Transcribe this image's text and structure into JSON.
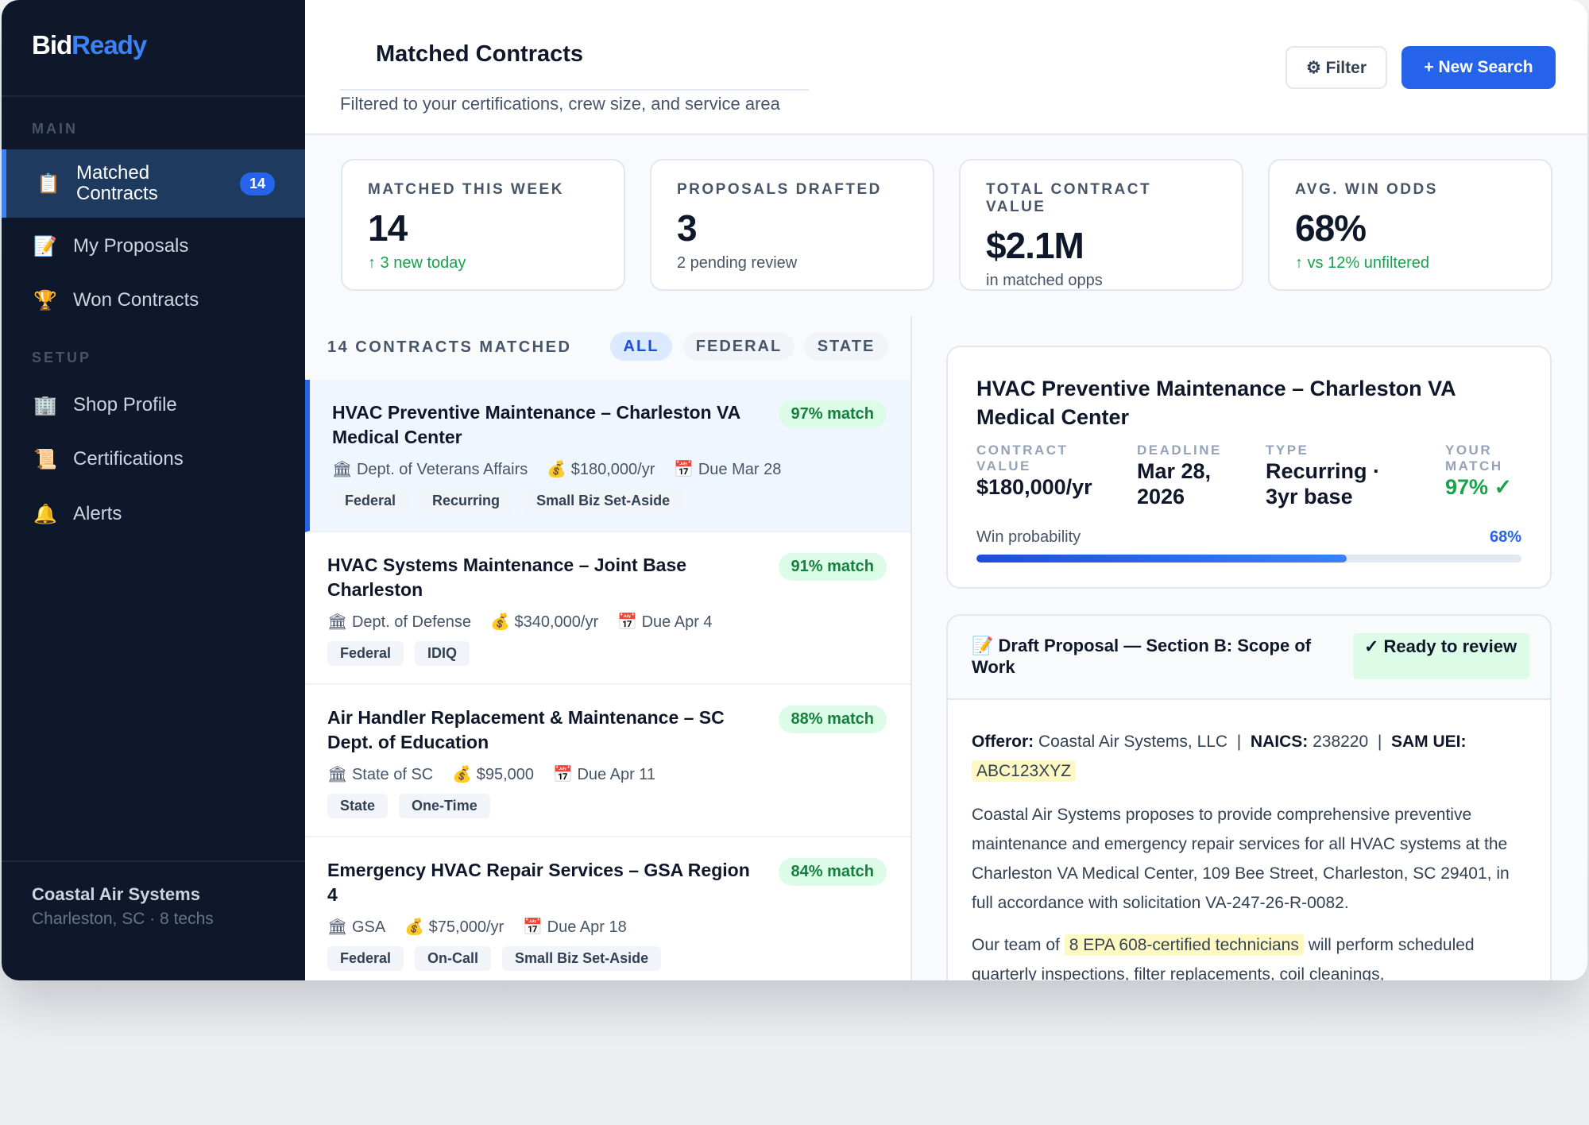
{
  "app": {
    "logo_a": "Bid",
    "logo_b": "Ready"
  },
  "sidebar": {
    "main_label": "MAIN",
    "setup_label": "SETUP",
    "items": [
      {
        "icon": "📋",
        "label": "Matched Contracts",
        "badge": "14"
      },
      {
        "icon": "📝",
        "label": "My Proposals"
      },
      {
        "icon": "🏆",
        "label": "Won Contracts"
      },
      {
        "icon": "🏢",
        "label": "Shop Profile"
      },
      {
        "icon": "📜",
        "label": "Certifications"
      },
      {
        "icon": "🔔",
        "label": "Alerts"
      }
    ],
    "footer": {
      "name": "Coastal Air Systems",
      "sub": "Charleston, SC · 8 techs"
    }
  },
  "header": {
    "title": "Matched Contracts",
    "subtitle": "Filtered to your certifications, crew size, and service area",
    "filter": "⚙ Filter",
    "new_search": "+ New Search"
  },
  "stats": [
    {
      "label": "MATCHED THIS WEEK",
      "value": "14",
      "delta": "↑ 3 new today",
      "positive": true
    },
    {
      "label": "PROPOSALS DRAFTED",
      "value": "3",
      "delta": "2 pending review"
    },
    {
      "label": "TOTAL CONTRACT VALUE",
      "value": "$2.1M",
      "delta": "in matched opps"
    },
    {
      "label": "AVG. WIN ODDS",
      "value": "68%",
      "delta": "↑ vs 12% unfiltered",
      "positive": true
    }
  ],
  "list": {
    "header": "14 CONTRACTS MATCHED",
    "filters": [
      "ALL",
      "FEDERAL",
      "STATE"
    ],
    "active_filter": "ALL",
    "items": [
      {
        "title": "HVAC Preventive Maintenance – Charleston VA Medical Center",
        "match": "97% match",
        "agency": "🏛 Dept. of Veterans Affairs",
        "value": "💰 $180,000/yr",
        "due": "📅 Due Mar 28",
        "tags": [
          "Federal",
          "Recurring",
          "Small Biz Set-Aside"
        ]
      },
      {
        "title": "HVAC Systems Maintenance – Joint Base Charleston",
        "match": "91% match",
        "agency": "🏛 Dept. of Defense",
        "value": "💰 $340,000/yr",
        "due": "📅 Due Apr 4",
        "tags": [
          "Federal",
          "IDIQ"
        ]
      },
      {
        "title": "Air Handler Replacement & Maintenance – SC Dept. of Education",
        "match": "88% match",
        "agency": "🏛 State of SC",
        "value": "💰 $95,000",
        "due": "📅 Due Apr 11",
        "tags": [
          "State",
          "One-Time"
        ]
      },
      {
        "title": "Emergency HVAC Repair Services – GSA Region 4",
        "match": "84% match",
        "agency": "🏛 GSA",
        "value": "💰 $75,000/yr",
        "due": "📅 Due Apr 18",
        "tags": [
          "Federal",
          "On-Call",
          "Small Biz Set-Aside"
        ]
      }
    ]
  },
  "detail": {
    "title": "HVAC Preventive Maintenance – Charleston VA Medical Center",
    "facts": [
      {
        "label": "CONTRACT VALUE",
        "value": "$180,000/yr"
      },
      {
        "label": "DEADLINE",
        "value": "Mar 28, 2026"
      },
      {
        "label": "TYPE",
        "value": "Recurring · 3yr base"
      },
      {
        "label": "YOUR MATCH",
        "value": "97% ✓"
      }
    ],
    "win_label": "Win probability",
    "win_value": "68%",
    "win_pct": 68
  },
  "proposal": {
    "title": "📝 Draft Proposal — Section B: Scope of Work",
    "status": "✓ Ready to review",
    "offeror_label": "Offeror:",
    "offeror": "Coastal Air Systems, LLC",
    "naics_label": "NAICS:",
    "naics": "238220",
    "uei_label": "SAM UEI:",
    "uei": "ABC123XYZ",
    "p1": "Coastal Air Systems proposes to provide comprehensive preventive maintenance and emergency repair services for all HVAC systems at the Charleston VA Medical Center, 109 Bee Street, Charleston, SC 29401, in full accordance with solicitation VA-247-26-R-0082.",
    "p2a": "Our team of",
    "p2h": "8 EPA 608-certified technicians",
    "p2b": "will perform scheduled quarterly inspections, filter replacements, coil cleanings,"
  },
  "colors": {
    "accent": "#2563eb",
    "sidebar": "#0f172a",
    "success": "#16a34a",
    "highlight": "#fef9c3"
  }
}
